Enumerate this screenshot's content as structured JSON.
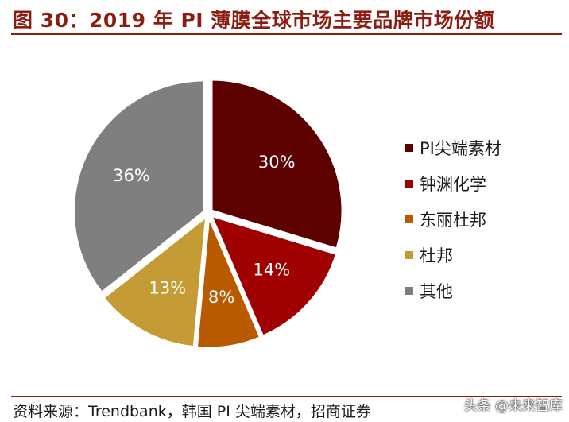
{
  "header": {
    "title": "图 30：2019 年 PI 薄膜全球市场主要品牌市场份额"
  },
  "chart_data": {
    "type": "pie",
    "title": "",
    "unit": "%",
    "start_angle_deg": 0,
    "direction": "clockwise",
    "slices": [
      {
        "label": "PI尖端素材",
        "value": 30,
        "display": "30%",
        "color": "#5c0000"
      },
      {
        "label": "钟渊化学",
        "value": 14,
        "display": "14%",
        "color": "#a00000"
      },
      {
        "label": "东丽杜邦",
        "value": 8,
        "display": "8%",
        "color": "#b85a00"
      },
      {
        "label": "杜邦",
        "value": 13,
        "display": "13%",
        "color": "#c49b34"
      },
      {
        "label": "其他",
        "value": 36,
        "display": "36%",
        "color": "#7f7f7f"
      }
    ],
    "legend_position": "right"
  },
  "footer": {
    "source": "资料来源：Trendbank，韩国 PI 尖端素材，招商证券",
    "watermark": "头条 @未来智库"
  }
}
